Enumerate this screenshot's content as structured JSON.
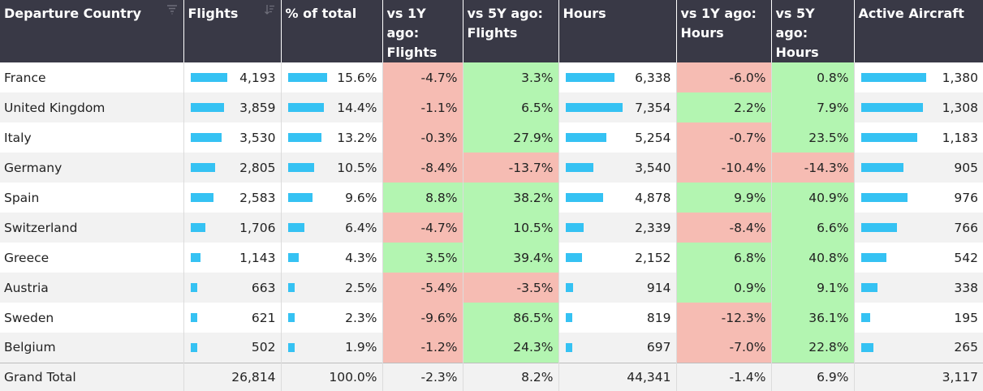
{
  "table": {
    "headers": [
      "Departure Country",
      "Flights",
      "% of total",
      "vs 1Y ago: Flights",
      "vs 5Y ago: Flights",
      "Hours",
      "vs 1Y ago: Hours",
      "vs 5Y ago: Hours",
      "Active Aircraft"
    ],
    "rows": [
      {
        "country": "France",
        "flights": "4,193",
        "pct": "15.6%",
        "y1_flights": "-4.7%",
        "y5_flights": "3.3%",
        "hours": "6,338",
        "y1_hours": "-6.0%",
        "y5_hours": "0.8%",
        "aircraft": "1,380"
      },
      {
        "country": "United Kingdom",
        "flights": "3,859",
        "pct": "14.4%",
        "y1_flights": "-1.1%",
        "y5_flights": "6.5%",
        "hours": "7,354",
        "y1_hours": "2.2%",
        "y5_hours": "7.9%",
        "aircraft": "1,308"
      },
      {
        "country": "Italy",
        "flights": "3,530",
        "pct": "13.2%",
        "y1_flights": "-0.3%",
        "y5_flights": "27.9%",
        "hours": "5,254",
        "y1_hours": "-0.7%",
        "y5_hours": "23.5%",
        "aircraft": "1,183"
      },
      {
        "country": "Germany",
        "flights": "2,805",
        "pct": "10.5%",
        "y1_flights": "-8.4%",
        "y5_flights": "-13.7%",
        "hours": "3,540",
        "y1_hours": "-10.4%",
        "y5_hours": "-14.3%",
        "aircraft": "905"
      },
      {
        "country": "Spain",
        "flights": "2,583",
        "pct": "9.6%",
        "y1_flights": "8.8%",
        "y5_flights": "38.2%",
        "hours": "4,878",
        "y1_hours": "9.9%",
        "y5_hours": "40.9%",
        "aircraft": "976"
      },
      {
        "country": "Switzerland",
        "flights": "1,706",
        "pct": "6.4%",
        "y1_flights": "-4.7%",
        "y5_flights": "10.5%",
        "hours": "2,339",
        "y1_hours": "-8.4%",
        "y5_hours": "6.6%",
        "aircraft": "766"
      },
      {
        "country": "Greece",
        "flights": "1,143",
        "pct": "4.3%",
        "y1_flights": "3.5%",
        "y5_flights": "39.4%",
        "hours": "2,152",
        "y1_hours": "6.8%",
        "y5_hours": "40.8%",
        "aircraft": "542"
      },
      {
        "country": "Austria",
        "flights": "663",
        "pct": "2.5%",
        "y1_flights": "-5.4%",
        "y5_flights": "-3.5%",
        "hours": "914",
        "y1_hours": "0.9%",
        "y5_hours": "9.1%",
        "aircraft": "338"
      },
      {
        "country": "Sweden",
        "flights": "621",
        "pct": "2.3%",
        "y1_flights": "-9.6%",
        "y5_flights": "86.5%",
        "hours": "819",
        "y1_hours": "-12.3%",
        "y5_hours": "36.1%",
        "aircraft": "195"
      },
      {
        "country": "Belgium",
        "flights": "502",
        "pct": "1.9%",
        "y1_flights": "-1.2%",
        "y5_flights": "24.3%",
        "hours": "697",
        "y1_hours": "-7.0%",
        "y5_hours": "22.8%",
        "aircraft": "265"
      }
    ],
    "total": {
      "country": "Grand Total",
      "flights": "26,814",
      "pct": "100.0%",
      "y1_flights": "-2.3%",
      "y5_flights": "8.2%",
      "hours": "44,341",
      "y1_hours": "-1.4%",
      "y5_hours": "6.9%",
      "aircraft": "3,117"
    }
  },
  "icons": {
    "filter": "filter-icon",
    "sort": "sort-descending-icon"
  },
  "colors": {
    "header_bg": "#393946",
    "bar": "#35c2f3",
    "positive": "#b3f5b1",
    "negative": "#f6bcb3",
    "row_alt": "#f2f2f2"
  }
}
